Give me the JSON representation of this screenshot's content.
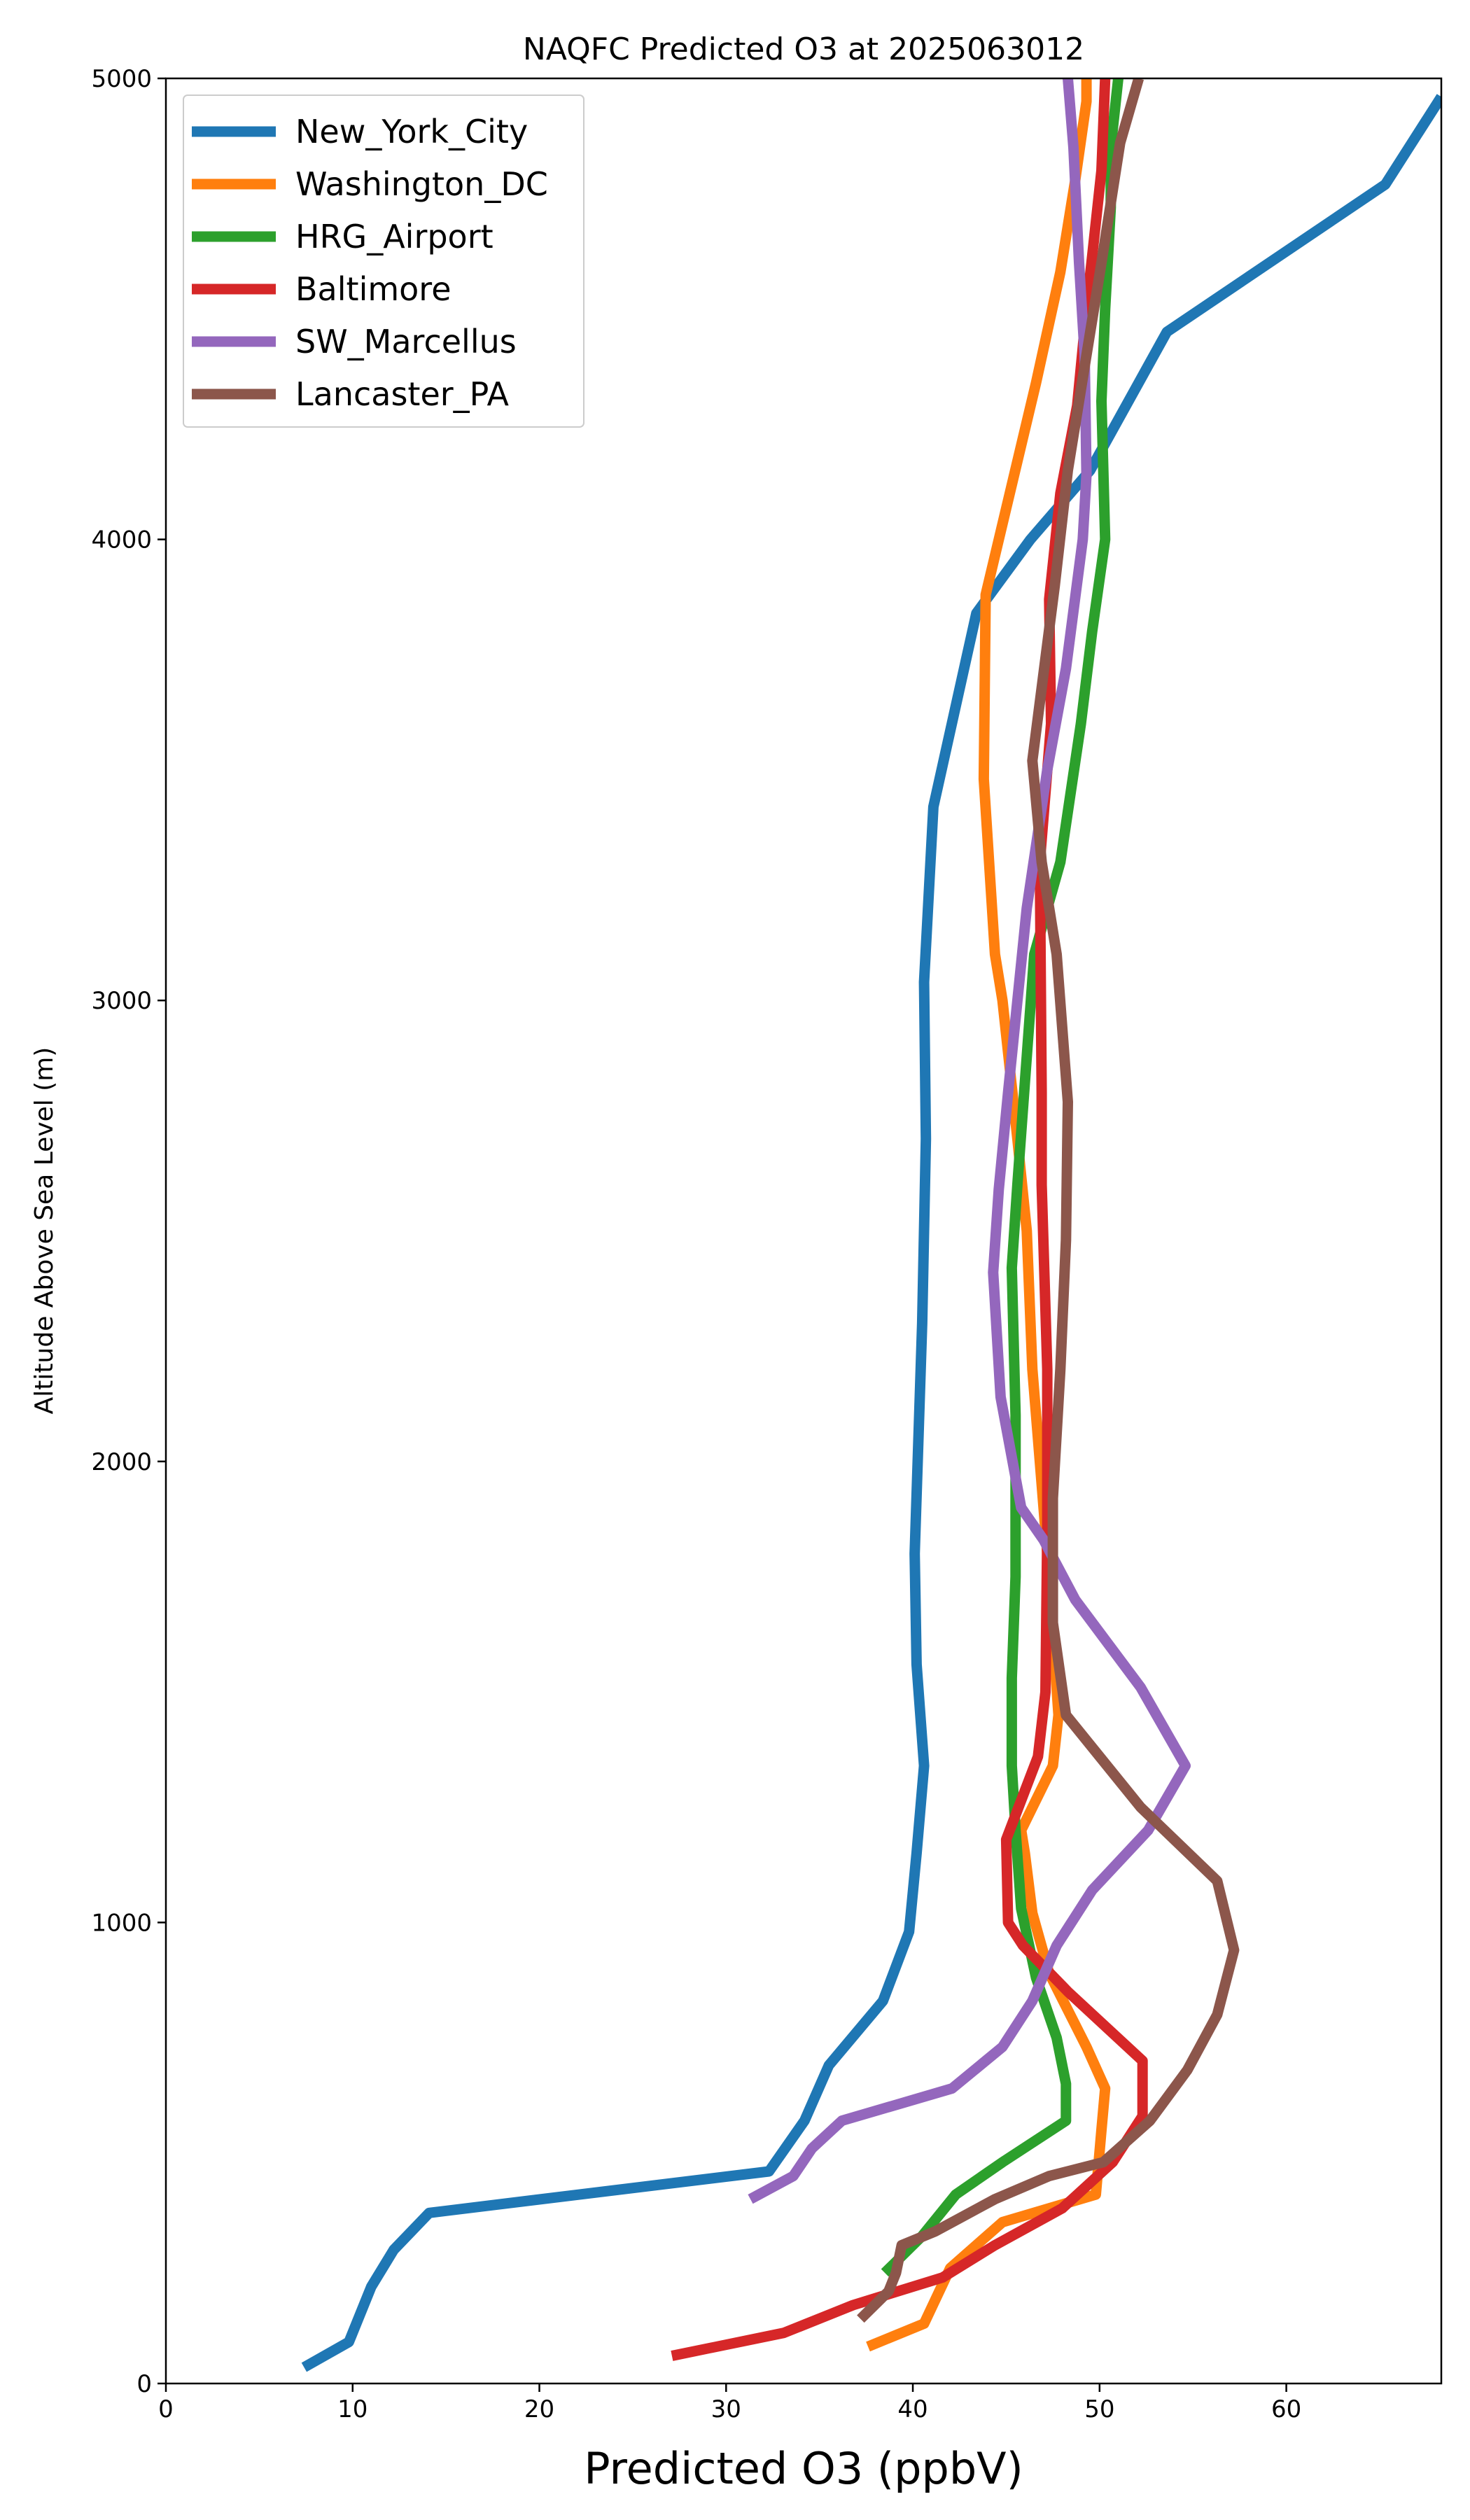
{
  "chart_data": {
    "type": "line",
    "title": "NAQFC Predicted O3 at 2025063012",
    "xlabel": "Predicted O3 (ppbV)",
    "ylabel": "Altitude Above Sea Level (m)",
    "xlim": [
      0,
      68.3
    ],
    "ylim": [
      0,
      5000
    ],
    "xticks": [
      0,
      10,
      20,
      30,
      40,
      50,
      60
    ],
    "yticks": [
      0,
      1000,
      2000,
      3000,
      4000,
      5000
    ],
    "legend_location": "upper-left",
    "grid": false,
    "series": [
      {
        "name": "New_York_City",
        "color": "#1f77b4",
        "points": [
          [
            7.4,
            35
          ],
          [
            9.8,
            90
          ],
          [
            11,
            210
          ],
          [
            12.2,
            290
          ],
          [
            14.1,
            370
          ],
          [
            32.3,
            460
          ],
          [
            34.2,
            570
          ],
          [
            35.5,
            690
          ],
          [
            38.4,
            830
          ],
          [
            39.8,
            980
          ],
          [
            40.2,
            1150
          ],
          [
            40.6,
            1340
          ],
          [
            40.2,
            1560
          ],
          [
            40.1,
            1800
          ],
          [
            40.5,
            2300
          ],
          [
            40.7,
            2700
          ],
          [
            40.6,
            3040
          ],
          [
            41.1,
            3420
          ],
          [
            43.4,
            3840
          ],
          [
            46.3,
            4000
          ],
          [
            49.5,
            4150
          ],
          [
            53.6,
            4450
          ],
          [
            65.3,
            4770
          ],
          [
            68.3,
            4960
          ]
        ]
      },
      {
        "name": "Washington_DC",
        "color": "#ff7f0e",
        "points": [
          [
            37.6,
            80
          ],
          [
            40.6,
            130
          ],
          [
            42,
            250
          ],
          [
            44.8,
            350
          ],
          [
            49.8,
            410
          ],
          [
            50.1,
            550
          ],
          [
            50.3,
            640
          ],
          [
            49.3,
            730
          ],
          [
            47.3,
            890
          ],
          [
            46.4,
            1020
          ],
          [
            46,
            1150
          ],
          [
            45.8,
            1200
          ],
          [
            47.5,
            1340
          ],
          [
            47.8,
            1450
          ],
          [
            47.2,
            1800
          ],
          [
            46.4,
            2200
          ],
          [
            46.1,
            2500
          ],
          [
            45.6,
            2700
          ],
          [
            44.8,
            3000
          ],
          [
            44.4,
            3100
          ],
          [
            43.8,
            3480
          ],
          [
            43.9,
            3880
          ],
          [
            46.6,
            4340
          ],
          [
            47.9,
            4580
          ],
          [
            48.7,
            4780
          ],
          [
            49.3,
            4950
          ],
          [
            49.3,
            5000
          ]
        ]
      },
      {
        "name": "HRG_Airport",
        "color": "#2ca02c",
        "points": [
          [
            38.5,
            240
          ],
          [
            40.5,
            320
          ],
          [
            42.3,
            410
          ],
          [
            44.8,
            480
          ],
          [
            48.2,
            570
          ],
          [
            48.2,
            650
          ],
          [
            47.7,
            750
          ],
          [
            46.6,
            880
          ],
          [
            45.8,
            1030
          ],
          [
            45.5,
            1200
          ],
          [
            45.3,
            1340
          ],
          [
            45.3,
            1530
          ],
          [
            45.5,
            1750
          ],
          [
            45.5,
            2100
          ],
          [
            45.3,
            2420
          ],
          [
            45.6,
            2600
          ],
          [
            46.5,
            3100
          ],
          [
            47.9,
            3300
          ],
          [
            49,
            3600
          ],
          [
            49.6,
            3800
          ],
          [
            50.3,
            4000
          ],
          [
            50.1,
            4300
          ],
          [
            50.3,
            4500
          ],
          [
            50.6,
            4720
          ],
          [
            50.6,
            4850
          ],
          [
            51,
            5000
          ]
        ]
      },
      {
        "name": "Baltimore",
        "color": "#d62728",
        "points": [
          [
            27.1,
            60
          ],
          [
            33.1,
            110
          ],
          [
            36.8,
            170
          ],
          [
            41.6,
            230
          ],
          [
            44.4,
            300
          ],
          [
            48,
            380
          ],
          [
            50.7,
            480
          ],
          [
            52.3,
            580
          ],
          [
            52.3,
            700
          ],
          [
            48.3,
            850
          ],
          [
            45.9,
            950
          ],
          [
            45.1,
            1000
          ],
          [
            45,
            1180
          ],
          [
            46.7,
            1360
          ],
          [
            47.1,
            1500
          ],
          [
            47.2,
            1850
          ],
          [
            47.2,
            2200
          ],
          [
            46.9,
            2600
          ],
          [
            46.9,
            2800
          ],
          [
            46.8,
            3300
          ],
          [
            47.4,
            3600
          ],
          [
            47.3,
            3870
          ],
          [
            47.9,
            4100
          ],
          [
            48.8,
            4290
          ],
          [
            49.3,
            4500
          ],
          [
            50.1,
            4800
          ],
          [
            50.3,
            5000
          ]
        ]
      },
      {
        "name": "SW_Marcellus",
        "color": "#9467bd",
        "points": [
          [
            31.3,
            400
          ],
          [
            33.6,
            450
          ],
          [
            34.6,
            510
          ],
          [
            36.2,
            570
          ],
          [
            42.1,
            640
          ],
          [
            44.8,
            730
          ],
          [
            46.4,
            830
          ],
          [
            47.7,
            950
          ],
          [
            49.6,
            1070
          ],
          [
            52.6,
            1200
          ],
          [
            54.6,
            1340
          ],
          [
            52.2,
            1510
          ],
          [
            48.7,
            1700
          ],
          [
            47,
            1830
          ],
          [
            45.8,
            1900
          ],
          [
            44.7,
            2140
          ],
          [
            44.3,
            2410
          ],
          [
            44.6,
            2590
          ],
          [
            45.1,
            2800
          ],
          [
            46.1,
            3200
          ],
          [
            47.2,
            3500
          ],
          [
            48.2,
            3720
          ],
          [
            49.1,
            4000
          ],
          [
            49.3,
            4140
          ],
          [
            49.2,
            4400
          ],
          [
            48.9,
            4600
          ],
          [
            48.6,
            4850
          ],
          [
            48.3,
            5000
          ]
        ]
      },
      {
        "name": "Lancaster_PA",
        "color": "#8c564b",
        "points": [
          [
            37.2,
            140
          ],
          [
            38.7,
            200
          ],
          [
            39.1,
            240
          ],
          [
            39.4,
            300
          ],
          [
            41.2,
            330
          ],
          [
            44.4,
            400
          ],
          [
            47.3,
            450
          ],
          [
            50.2,
            480
          ],
          [
            52.7,
            570
          ],
          [
            54.7,
            680
          ],
          [
            56.3,
            800
          ],
          [
            57.2,
            940
          ],
          [
            56.3,
            1090
          ],
          [
            52.2,
            1250
          ],
          [
            48.2,
            1450
          ],
          [
            47.5,
            1650
          ],
          [
            47.5,
            1920
          ],
          [
            47.9,
            2200
          ],
          [
            48.2,
            2480
          ],
          [
            48.3,
            2780
          ],
          [
            47.7,
            3100
          ],
          [
            46.9,
            3300
          ],
          [
            46.4,
            3520
          ],
          [
            47.6,
            3900
          ],
          [
            48.3,
            4150
          ],
          [
            49.1,
            4350
          ],
          [
            50.1,
            4600
          ],
          [
            51.1,
            4860
          ],
          [
            52.1,
            5000
          ]
        ]
      }
    ]
  }
}
